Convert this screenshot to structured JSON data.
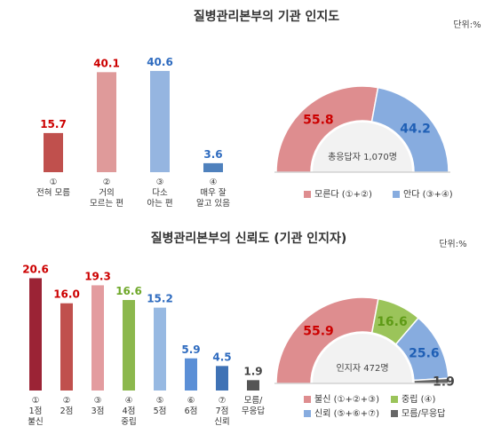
{
  "chart_data": [
    {
      "type": "bar",
      "title": "질병관리본부의 기관 인지도",
      "unit": "단위:%",
      "categories": [
        [
          "①",
          "전혀 모름"
        ],
        [
          "②",
          "거의",
          "모르는 편"
        ],
        [
          "③",
          "다소",
          "아는 편"
        ],
        [
          "④",
          "매우 잘",
          "알고 있음"
        ]
      ],
      "values": [
        15.7,
        40.1,
        40.6,
        3.6
      ],
      "value_labels": [
        "15.7",
        "40.1",
        "40.6",
        "3.6"
      ],
      "colors": [
        "#c0504d",
        "#df9a9a",
        "#95b5e0",
        "#4f81bd"
      ],
      "label_colors": [
        "#cc0000",
        "#cc0000",
        "#2e6bbf",
        "#2e6bbf"
      ],
      "ylim": [
        0,
        42
      ]
    },
    {
      "type": "pie",
      "variant": "half-donut",
      "center_label": "총응답자 1,070명",
      "slices": [
        {
          "name": "모른다 (①+②)",
          "value": 55.8,
          "label": "55.8",
          "color": "#de8d8f",
          "label_color": "#cc0000"
        },
        {
          "name": "안다 (③+④)",
          "value": 44.2,
          "label": "44.2",
          "color": "#87acdf",
          "label_color": "#1f5fb5"
        }
      ],
      "legend_position": "bottom"
    },
    {
      "type": "bar",
      "title": "질병관리본부의 신뢰도 (기관 인지자)",
      "unit": "단위:%",
      "categories": [
        [
          "①",
          "1점",
          "불신"
        ],
        [
          "②",
          "2점"
        ],
        [
          "③",
          "3점"
        ],
        [
          "④",
          "4점",
          "중립"
        ],
        [
          "⑤",
          "5점"
        ],
        [
          "⑥",
          "6점"
        ],
        [
          "⑦",
          "7점",
          "신뢰"
        ],
        [
          "모름/",
          "무응답"
        ]
      ],
      "values": [
        20.6,
        16.0,
        19.3,
        16.6,
        15.2,
        5.9,
        4.5,
        1.9
      ],
      "value_labels": [
        "20.6",
        "16.0",
        "19.3",
        "16.6",
        "15.2",
        "5.9",
        "4.5",
        "1.9"
      ],
      "colors": [
        "#9b2335",
        "#c0504d",
        "#e39c9f",
        "#8cb84d",
        "#97b9e2",
        "#5b8fd6",
        "#3f72b5",
        "#555555"
      ],
      "label_colors": [
        "#cc0000",
        "#cc0000",
        "#cc0000",
        "#6fa82a",
        "#2e6bbf",
        "#2e6bbf",
        "#2e6bbf",
        "#444444"
      ],
      "ylim": [
        0,
        21
      ]
    },
    {
      "type": "pie",
      "variant": "half-donut",
      "center_label": "인지자 472명",
      "slices": [
        {
          "name": "불신 (①+②+③)",
          "value": 55.9,
          "label": "55.9",
          "color": "#de8d8f",
          "label_color": "#cc0000"
        },
        {
          "name": "중립 (④)",
          "value": 16.6,
          "label": "16.6",
          "color": "#9bc45a",
          "label_color": "#5e9a16"
        },
        {
          "name": "신뢰 (⑤+⑥+⑦)",
          "value": 25.6,
          "label": "25.6",
          "color": "#87acdf",
          "label_color": "#1f5fb5"
        },
        {
          "name": "모름/무응답",
          "value": 1.9,
          "label": "1.9",
          "color": "#666666",
          "label_color": "#444444"
        }
      ],
      "legend_position": "bottom"
    }
  ]
}
